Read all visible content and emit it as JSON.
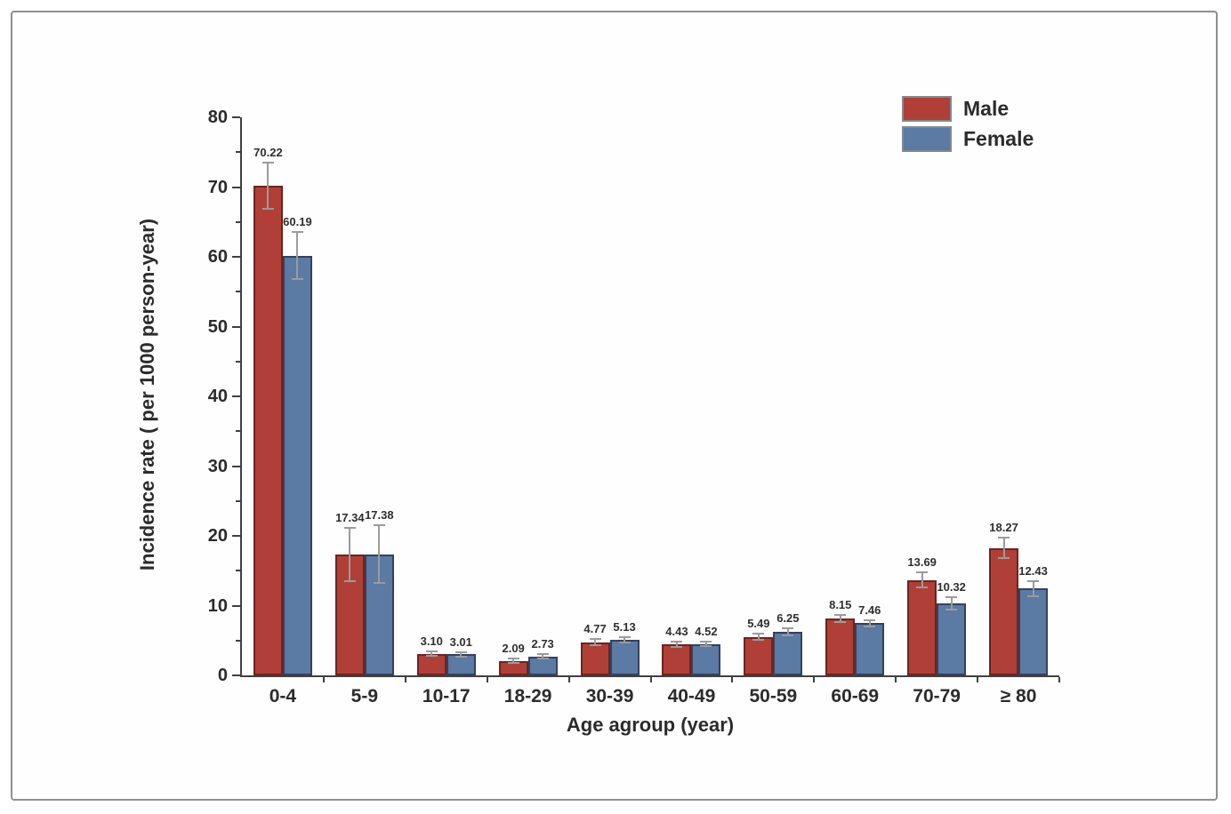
{
  "chart_data": {
    "type": "bar",
    "title": "",
    "xlabel": "Age agroup (year)",
    "ylabel": "Incidence rate ( per 1000 person-year)",
    "categories": [
      "0-4",
      "5-9",
      "10-17",
      "18-29",
      "30-39",
      "40-49",
      "50-59",
      "60-69",
      "70-79",
      "≥ 80"
    ],
    "series": [
      {
        "name": "Male",
        "color": "#b04037",
        "edge_color": "#6b2422",
        "values": [
          70.22,
          17.34,
          3.1,
          2.09,
          4.77,
          4.43,
          5.49,
          8.15,
          13.69,
          18.27
        ],
        "value_labels": [
          "70.22",
          "17.34",
          "3.10",
          "2.09",
          "4.77",
          "4.43",
          "5.49",
          "8.15",
          "13.69",
          "18.27"
        ],
        "errors": [
          3.3,
          3.8,
          0.3,
          0.3,
          0.4,
          0.35,
          0.45,
          0.55,
          1.1,
          1.5
        ]
      },
      {
        "name": "Female",
        "color": "#5b7aa4",
        "edge_color": "#33425c",
        "values": [
          60.19,
          17.38,
          3.01,
          2.73,
          5.13,
          4.52,
          6.25,
          7.46,
          10.32,
          12.43
        ],
        "value_labels": [
          "60.19",
          "17.38",
          "3.01",
          "2.73",
          "5.13",
          "4.52",
          "6.25",
          "7.46",
          "10.32",
          "12.43"
        ],
        "errors": [
          3.4,
          4.1,
          0.3,
          0.35,
          0.4,
          0.35,
          0.5,
          0.5,
          0.9,
          1.1
        ]
      }
    ],
    "ylim": [
      0,
      80
    ],
    "y_major_tick_step": 10,
    "y_minor_tick_step": 5,
    "grid": false,
    "legend_position": "top-right",
    "colors": {
      "error_bar": "#9b9b9b",
      "axis": "#404040",
      "text": "#2b2b2b",
      "frame_border": "#8f8f8f",
      "background": "#ffffff"
    }
  }
}
